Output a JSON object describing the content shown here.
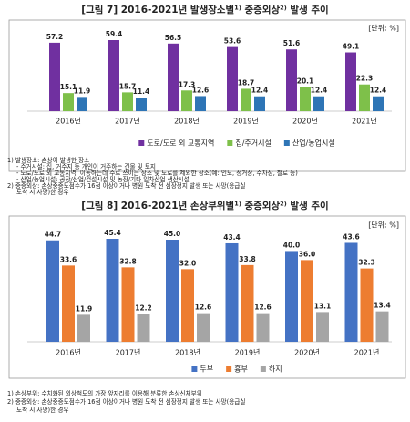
{
  "chart_data": [
    {
      "type": "bar",
      "title": "[그림 7] 2016-2021년 발생장소별¹⁾ 중증외상²⁾ 발생 추이",
      "unit": "[단위: %]",
      "categories": [
        "2016년",
        "2017년",
        "2018년",
        "2019년",
        "2020년",
        "2021년"
      ],
      "series": [
        {
          "name": "도로/도로 외 교통지역",
          "color": "#7030a0",
          "values": [
            57.2,
            59.4,
            56.5,
            53.6,
            51.6,
            49.1
          ]
        },
        {
          "name": "집/주거시설",
          "color": "#7ec04a",
          "values": [
            15.1,
            15.7,
            17.3,
            18.7,
            20.1,
            22.3
          ]
        },
        {
          "name": "산업/농업시설",
          "color": "#2e75b6",
          "values": [
            11.9,
            11.4,
            12.6,
            12.4,
            12.4,
            12.4
          ]
        }
      ],
      "footnotes": [
        "1) 발생장소: 손상이 발생한 장소",
        "- 주거시설: 집, 거주지 등 개인이 거주하는 건물 및 토지",
        "- 도로/도로 외 교통지역: 이동하는데 주로 쓰이는 장소 및 도로를 제외한 장소(예: 인도, 정거장, 주차장, 철로 등)",
        "- 산업/농업시설: 공장/산업/건설시설 및 농장/기타 일차산업 생산시설",
        "2) 중증외상: 손상중증도점수가 16점 이상이거나 병원 도착 전 심장정지 발생 또는 사망(응급실",
        "도착 시 사망)한 경우"
      ]
    },
    {
      "type": "bar",
      "title": "[그림 8] 2016-2021년 손상부위별¹⁾ 중증외상²⁾ 발생 추이",
      "unit": "[단위: %]",
      "categories": [
        "2016년",
        "2017년",
        "2018년",
        "2019년",
        "2020년",
        "2021년"
      ],
      "series": [
        {
          "name": "두부",
          "color": "#4472c4",
          "values": [
            44.7,
            45.4,
            45.0,
            43.4,
            40.0,
            43.6
          ],
          "value_labels": [
            "44.7",
            "45.4",
            "45.0",
            "43.4",
            "40.0",
            "43.6"
          ]
        },
        {
          "name": "흉부",
          "color": "#ed7d31",
          "values": [
            33.6,
            32.8,
            32.0,
            33.8,
            36.0,
            32.3
          ],
          "value_labels": [
            "33.6",
            "32.8",
            "32.0",
            "33.8",
            "36.0",
            "32.3"
          ]
        },
        {
          "name": "하지",
          "color": "#a5a5a5",
          "values": [
            11.9,
            12.2,
            12.6,
            12.6,
            13.1,
            13.4
          ],
          "value_labels": [
            "11.9",
            "12.2",
            "12.6",
            "12.6",
            "13.1",
            "13.4"
          ]
        }
      ],
      "footnotes": [
        "1) 손상부위: 수치화된 외상척도의 가장 앞자리를 이용해 분류한 손상신체부위",
        "2) 중증외상: 손상중증도점수가 16점 이상이거나 병원 도착 전 심장정지 발생 또는 사망(응급실",
        "도착 시 사망)한 경우"
      ]
    }
  ]
}
